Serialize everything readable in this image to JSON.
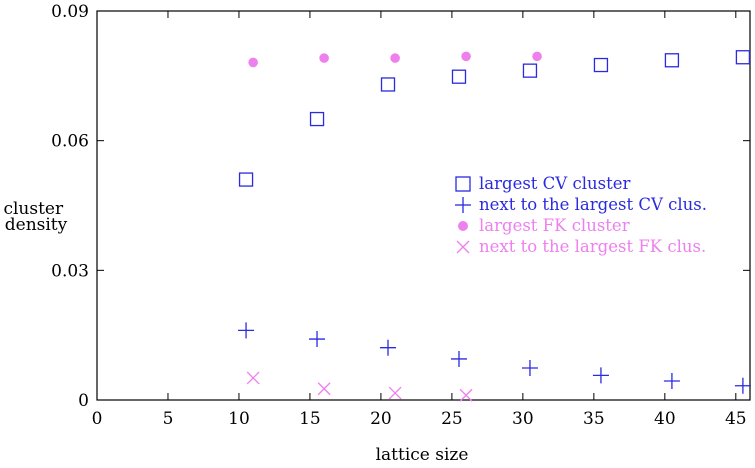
{
  "chart_data": {
    "type": "scatter",
    "xlabel": "lattice size",
    "ylabel": "cluster density",
    "xlim": [
      0,
      46
    ],
    "ylim": [
      0,
      0.09
    ],
    "xticks": [
      "0",
      "5",
      "10",
      "15",
      "20",
      "25",
      "30",
      "35",
      "40",
      "45"
    ],
    "yticks": [
      "0",
      "0.03",
      "0.06",
      "0.09"
    ],
    "grid": false,
    "legend_position": "right",
    "series": [
      {
        "name": "largest CV cluster",
        "marker": "square-open",
        "color": "#2a2ae0",
        "x": [
          10.5,
          15.5,
          20.5,
          25.5,
          30.5,
          35.5,
          40.5,
          45.5
        ],
        "y": [
          0.051,
          0.065,
          0.073,
          0.0748,
          0.0762,
          0.0775,
          0.0786,
          0.0793
        ]
      },
      {
        "name": "next to the largest CV clus.",
        "marker": "plus",
        "color": "#2a2ae0",
        "x": [
          10.5,
          15.5,
          20.5,
          25.5,
          30.5,
          35.5,
          40.5,
          45.5
        ],
        "y": [
          0.0161,
          0.0141,
          0.0121,
          0.0095,
          0.0074,
          0.0057,
          0.0044,
          0.0033
        ]
      },
      {
        "name": "largest FK cluster",
        "marker": "circle-filled",
        "color": "#ee80ee",
        "x": [
          11,
          16,
          21,
          26,
          31
        ],
        "y": [
          0.0781,
          0.0791,
          0.0791,
          0.0795,
          0.0795
        ]
      },
      {
        "name": "next to the largest FK clus.",
        "marker": "cross",
        "color": "#ee80ee",
        "x": [
          11,
          16,
          21,
          26
        ],
        "y": [
          0.0051,
          0.0026,
          0.0016,
          0.0011
        ]
      }
    ]
  }
}
